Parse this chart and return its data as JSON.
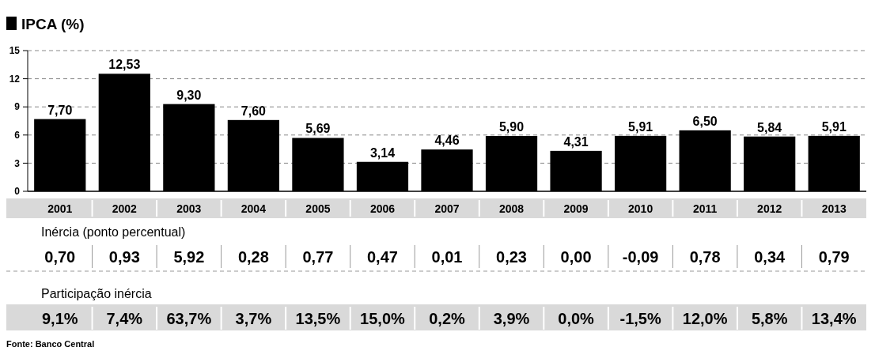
{
  "chart_data": [
    {
      "type": "bar",
      "title": "IPCA (%)",
      "categories": [
        "2001",
        "2002",
        "2003",
        "2004",
        "2005",
        "2006",
        "2007",
        "2008",
        "2009",
        "2010",
        "2011",
        "2012",
        "2013"
      ],
      "values": [
        7.7,
        12.53,
        9.3,
        7.6,
        5.69,
        3.14,
        4.46,
        5.9,
        4.31,
        5.91,
        6.5,
        5.84,
        5.91
      ],
      "value_labels": [
        "7,70",
        "12,53",
        "9,30",
        "7,60",
        "5,69",
        "3,14",
        "4,46",
        "5,90",
        "4,31",
        "5,91",
        "6,50",
        "5,84",
        "5,91"
      ],
      "color": "#000000",
      "ylim": [
        0,
        15
      ],
      "yticks": [
        0,
        3,
        6,
        9,
        12,
        15
      ],
      "grid": "y",
      "annotations": [
        "Fonte: Banco Central"
      ]
    },
    {
      "type": "other",
      "title": "Inércia (ponto percentual)",
      "categories": [
        null,
        null,
        null,
        null,
        null,
        null,
        null,
        null,
        null,
        null,
        null,
        null,
        null
      ],
      "values": [
        0.7,
        0.93,
        5.92,
        0.28,
        0.77,
        0.47,
        0.01,
        0.23,
        0.0,
        -0.09,
        0.78,
        0.34,
        0.79
      ],
      "value_labels": [
        "0,70",
        "0,93",
        "5,92",
        "0,28",
        "0,77",
        "0,47",
        "0,01",
        "0,23",
        "0,00",
        "-0,09",
        "0,78",
        "0,34",
        "0,79"
      ]
    },
    {
      "type": "other",
      "title": "Participação inércia",
      "categories": [
        null,
        null,
        null,
        null,
        null,
        null,
        null,
        null,
        null,
        null,
        null,
        null,
        null
      ],
      "values": [
        9.1,
        7.4,
        63.7,
        3.7,
        13.5,
        15.0,
        0.2,
        3.9,
        0.0,
        -1.5,
        12.0,
        5.8,
        13.4
      ],
      "value_labels": [
        "9,1%",
        "7,4%",
        "63,7%",
        "3,7%",
        "13,5%",
        "15,0%",
        "0,2%",
        "3,9%",
        "0,0%",
        "-1,5%",
        "12,0%",
        "5,8%",
        "13,4%"
      ]
    }
  ]
}
